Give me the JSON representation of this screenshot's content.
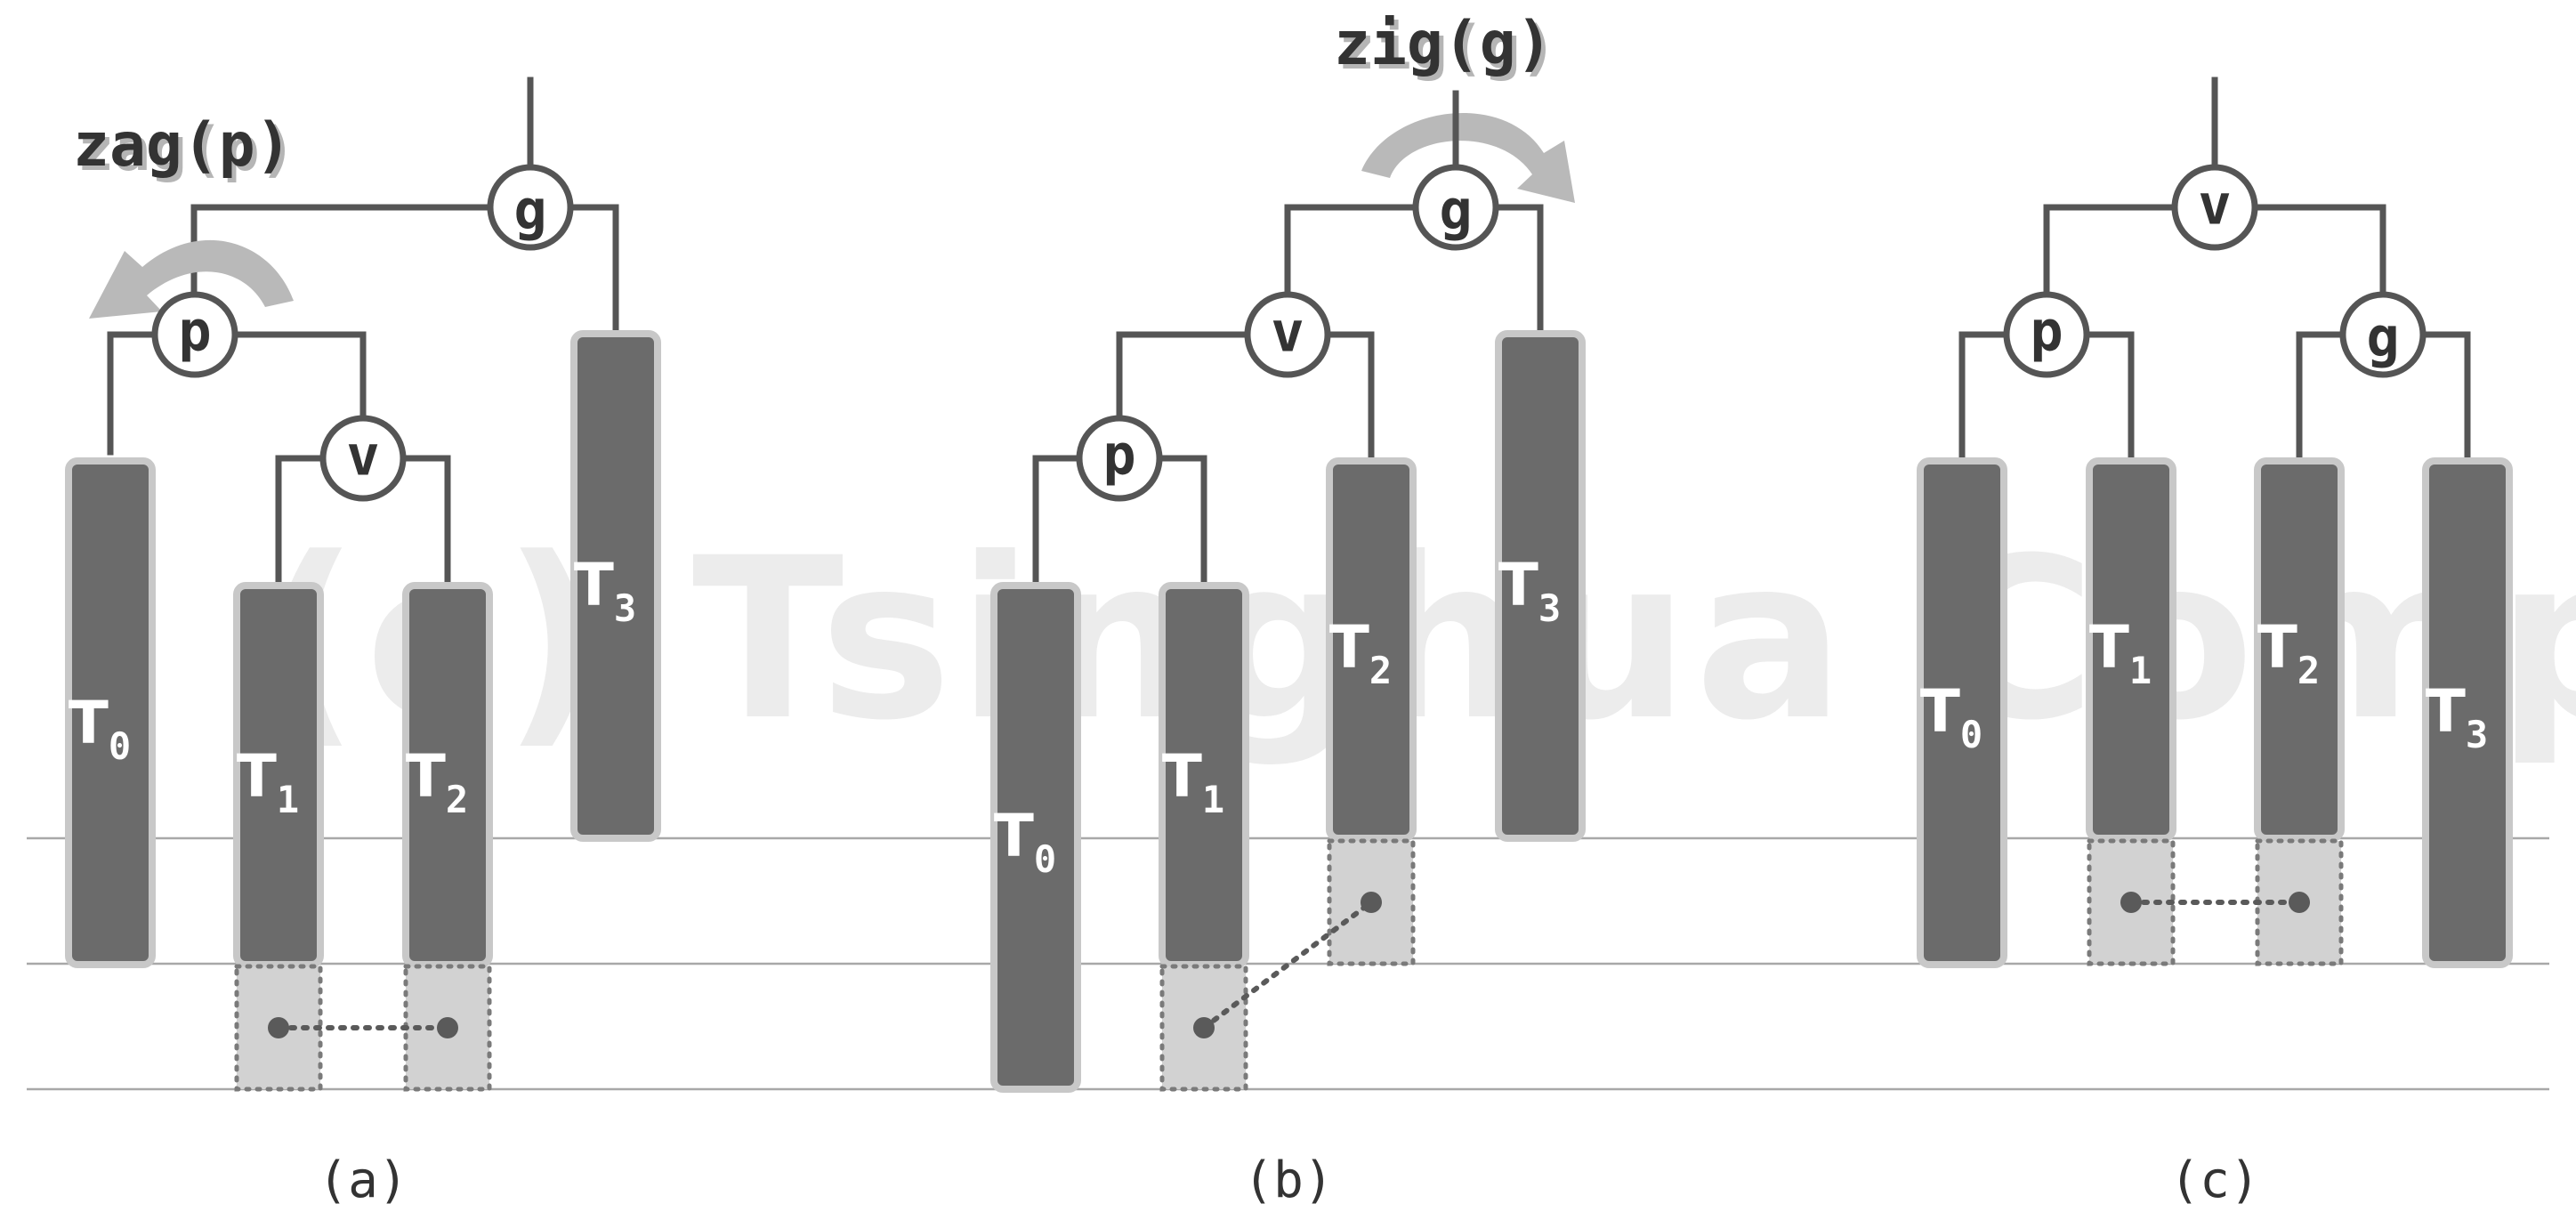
{
  "watermark": "(c) Tsinghua Computer",
  "panels": [
    {
      "caption": "(a)",
      "operation": "zag(p)",
      "nodes": [
        {
          "id": "g",
          "label": "g"
        },
        {
          "id": "p",
          "label": "p"
        },
        {
          "id": "v",
          "label": "v"
        }
      ],
      "subtrees": [
        {
          "main": "T",
          "sub": "0"
        },
        {
          "main": "T",
          "sub": "1"
        },
        {
          "main": "T",
          "sub": "2"
        },
        {
          "main": "T",
          "sub": "3"
        }
      ]
    },
    {
      "caption": "(b)",
      "operation": "zig(g)",
      "nodes": [
        {
          "id": "g",
          "label": "g"
        },
        {
          "id": "v",
          "label": "v"
        },
        {
          "id": "p",
          "label": "p"
        }
      ],
      "subtrees": [
        {
          "main": "T",
          "sub": "0"
        },
        {
          "main": "T",
          "sub": "1"
        },
        {
          "main": "T",
          "sub": "2"
        },
        {
          "main": "T",
          "sub": "3"
        }
      ]
    },
    {
      "caption": "(c)",
      "nodes": [
        {
          "id": "v",
          "label": "v"
        },
        {
          "id": "p",
          "label": "p"
        },
        {
          "id": "g",
          "label": "g"
        }
      ],
      "subtrees": [
        {
          "main": "T",
          "sub": "0"
        },
        {
          "main": "T",
          "sub": "1"
        },
        {
          "main": "T",
          "sub": "2"
        },
        {
          "main": "T",
          "sub": "3"
        }
      ]
    }
  ]
}
